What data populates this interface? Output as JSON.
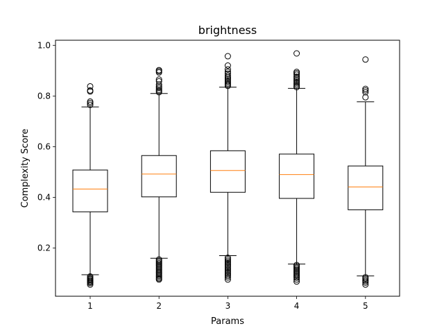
{
  "chart_data": {
    "type": "box",
    "title": "brightness",
    "xlabel": "Params",
    "ylabel": "Complexity Score",
    "ylim": [
      0.01,
      1.02
    ],
    "yticks": [
      0.2,
      0.4,
      0.6,
      0.8,
      1.0
    ],
    "ytick_labels": [
      "0.2",
      "0.4",
      "0.6",
      "0.8",
      "1.0"
    ],
    "categories": [
      "1",
      "2",
      "3",
      "4",
      "5"
    ],
    "grid": false,
    "colors": {
      "box": "#000000",
      "median": "#ff7f0e",
      "flier": "#000000"
    },
    "boxes": [
      {
        "label": "1",
        "whisker_low": 0.095,
        "q1": 0.343,
        "median": 0.433,
        "q3": 0.508,
        "whisker_high": 0.757,
        "fliers": [
          0.765,
          0.772,
          0.778,
          0.818,
          0.822,
          0.838,
          0.088,
          0.082,
          0.078,
          0.074,
          0.07,
          0.066,
          0.062,
          0.056
        ]
      },
      {
        "label": "2",
        "whisker_low": 0.16,
        "q1": 0.402,
        "median": 0.492,
        "q3": 0.565,
        "whisker_high": 0.81,
        "fliers": [
          0.815,
          0.82,
          0.825,
          0.832,
          0.838,
          0.845,
          0.858,
          0.865,
          0.893,
          0.898,
          0.902,
          0.155,
          0.15,
          0.145,
          0.14,
          0.135,
          0.13,
          0.125,
          0.12,
          0.115,
          0.11,
          0.105,
          0.1,
          0.095,
          0.09,
          0.085,
          0.08,
          0.076
        ]
      },
      {
        "label": "3",
        "whisker_low": 0.17,
        "q1": 0.42,
        "median": 0.506,
        "q3": 0.584,
        "whisker_high": 0.835,
        "fliers": [
          0.84,
          0.845,
          0.85,
          0.856,
          0.862,
          0.868,
          0.874,
          0.88,
          0.888,
          0.895,
          0.905,
          0.92,
          0.957,
          0.162,
          0.156,
          0.15,
          0.144,
          0.138,
          0.132,
          0.126,
          0.12,
          0.114,
          0.108,
          0.102,
          0.096,
          0.09,
          0.084,
          0.076
        ]
      },
      {
        "label": "4",
        "whisker_low": 0.137,
        "q1": 0.396,
        "median": 0.49,
        "q3": 0.571,
        "whisker_high": 0.83,
        "fliers": [
          0.835,
          0.84,
          0.846,
          0.852,
          0.858,
          0.864,
          0.87,
          0.876,
          0.884,
          0.89,
          0.895,
          0.968,
          0.133,
          0.128,
          0.123,
          0.118,
          0.113,
          0.108,
          0.103,
          0.098,
          0.093,
          0.088,
          0.083,
          0.076,
          0.068
        ]
      },
      {
        "label": "5",
        "whisker_low": 0.09,
        "q1": 0.351,
        "median": 0.441,
        "q3": 0.524,
        "whisker_high": 0.777,
        "fliers": [
          0.795,
          0.815,
          0.822,
          0.828,
          0.944,
          0.085,
          0.08,
          0.075,
          0.07,
          0.064,
          0.056
        ]
      }
    ]
  }
}
